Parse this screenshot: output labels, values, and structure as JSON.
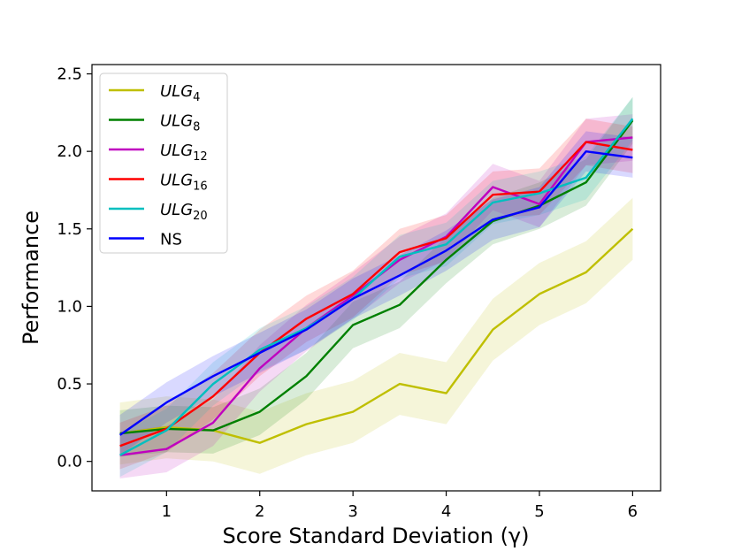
{
  "chart_data": {
    "type": "line",
    "title": "",
    "xlabel": "Score Standard Deviation (γ)",
    "ylabel": "Performance",
    "xlim": [
      0.2,
      6.3
    ],
    "ylim": [
      -0.19,
      2.56
    ],
    "xticks": [
      1,
      2,
      3,
      4,
      5,
      6
    ],
    "yticks": [
      0.0,
      0.5,
      1.0,
      1.5,
      2.0,
      2.5
    ],
    "xtick_labels": [
      "1",
      "2",
      "3",
      "4",
      "5",
      "6"
    ],
    "ytick_labels": [
      "0.0",
      "0.5",
      "1.0",
      "1.5",
      "2.0",
      "2.5"
    ],
    "grid": false,
    "legend_position": "upper-left",
    "x": [
      0.5,
      1.0,
      1.5,
      2.0,
      2.5,
      3.0,
      3.5,
      4.0,
      4.5,
      5.0,
      5.5,
      6.0
    ],
    "series": [
      {
        "name": "ULG",
        "subscript": "4",
        "color": "#bfbf00",
        "values": [
          0.18,
          0.22,
          0.2,
          0.12,
          0.24,
          0.32,
          0.5,
          0.44,
          0.85,
          1.08,
          1.22,
          1.5
        ],
        "band": 0.2
      },
      {
        "name": "ULG",
        "subscript": "8",
        "color": "#008000",
        "values": [
          0.18,
          0.21,
          0.2,
          0.32,
          0.55,
          0.88,
          1.01,
          1.3,
          1.55,
          1.65,
          1.8,
          2.2
        ],
        "band": 0.15
      },
      {
        "name": "ULG",
        "subscript": "12",
        "color": "#bf00bf",
        "values": [
          0.04,
          0.08,
          0.25,
          0.6,
          0.86,
          1.07,
          1.3,
          1.45,
          1.77,
          1.66,
          2.06,
          2.09
        ],
        "band": 0.15
      },
      {
        "name": "ULG",
        "subscript": "16",
        "color": "#ff0000",
        "values": [
          0.1,
          0.21,
          0.42,
          0.7,
          0.92,
          1.08,
          1.35,
          1.44,
          1.72,
          1.74,
          2.06,
          2.01
        ],
        "band": 0.15
      },
      {
        "name": "ULG",
        "subscript": "20",
        "color": "#00bfbf",
        "values": [
          0.04,
          0.2,
          0.5,
          0.72,
          0.86,
          1.05,
          1.32,
          1.4,
          1.67,
          1.73,
          1.83,
          2.21
        ],
        "band": 0.14
      },
      {
        "name": "NS",
        "subscript": "",
        "color": "#0000ff",
        "values": [
          0.17,
          0.38,
          0.55,
          0.7,
          0.85,
          1.05,
          1.2,
          1.36,
          1.56,
          1.64,
          2.0,
          1.96
        ],
        "band": 0.13
      }
    ]
  }
}
